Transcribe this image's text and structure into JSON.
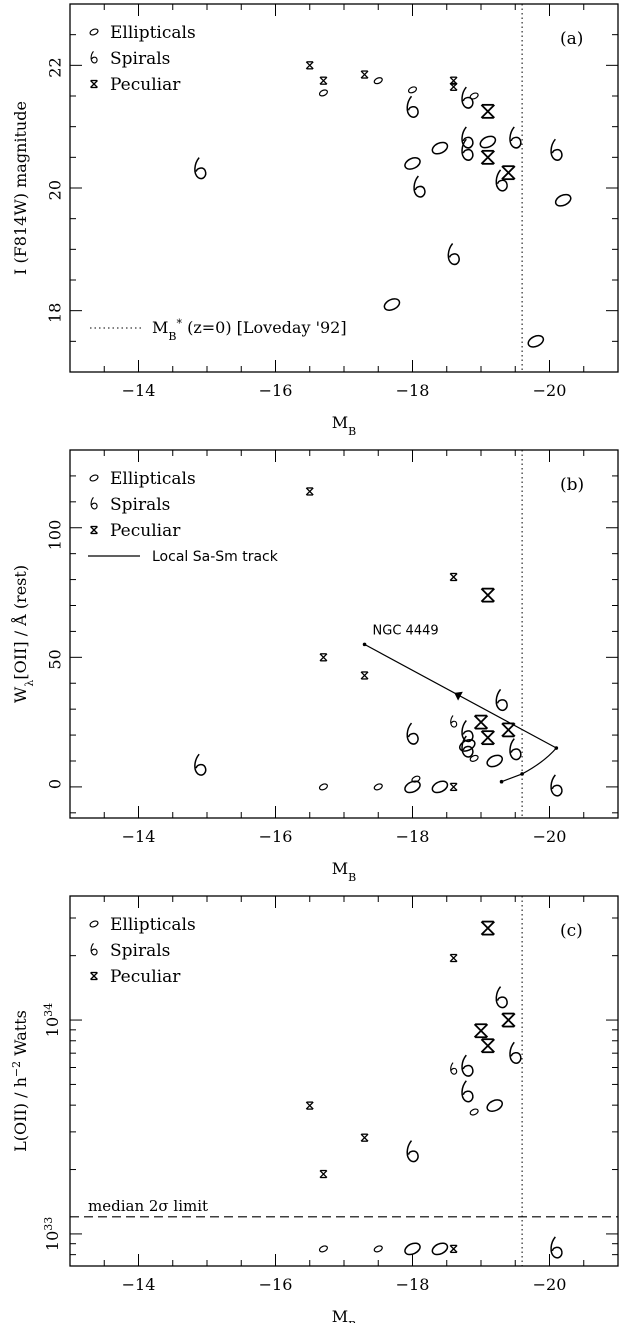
{
  "chart_data": [
    {
      "panel": "a",
      "type": "scatter",
      "panel_label": "(a)",
      "xlabel": "M",
      "xlabel_sub": "B",
      "ylabel": "I (F814W) magnitude",
      "xlim": [
        -13,
        -21
      ],
      "ylim": [
        17,
        23
      ],
      "xticks": [
        -14,
        -16,
        -18,
        -20
      ],
      "xtick_labels": [
        "−14",
        "−16",
        "−18",
        "−20"
      ],
      "yticks": [
        18,
        20,
        22
      ],
      "ytick_labels": [
        "18",
        "20",
        "22"
      ],
      "legend_position": "top-left",
      "legend": [
        {
          "key": "elliptical",
          "label": "Ellipticals"
        },
        {
          "key": "spiral",
          "label": "Spirals"
        },
        {
          "key": "peculiar",
          "label": "Peculiar"
        }
      ],
      "reference_line": {
        "orientation": "vertical",
        "x": -19.6,
        "style": "dotted",
        "label": "M",
        "label_sub": "B",
        "label_sup": "*",
        "label_rest": "(z=0) [Loveday '92]"
      },
      "series": [
        {
          "key": "elliptical",
          "points": [
            {
              "x": -16.7,
              "y": 21.55,
              "s": 1
            },
            {
              "x": -17.5,
              "y": 21.75,
              "s": 1
            },
            {
              "x": -18.0,
              "y": 21.6,
              "s": 1
            },
            {
              "x": -18.9,
              "y": 21.5,
              "s": 1
            },
            {
              "x": -18.0,
              "y": 20.4,
              "s": 2
            },
            {
              "x": -18.4,
              "y": 20.65,
              "s": 2
            },
            {
              "x": -19.1,
              "y": 20.75,
              "s": 2
            },
            {
              "x": -17.7,
              "y": 18.1,
              "s": 2
            },
            {
              "x": -19.8,
              "y": 17.5,
              "s": 2
            },
            {
              "x": -20.2,
              "y": 19.8,
              "s": 2
            }
          ]
        },
        {
          "key": "spiral",
          "points": [
            {
              "x": -14.9,
              "y": 20.3,
              "s": 2
            },
            {
              "x": -18.0,
              "y": 21.3,
              "s": 2
            },
            {
              "x": -18.8,
              "y": 21.45,
              "s": 2
            },
            {
              "x": -18.8,
              "y": 20.8,
              "s": 2
            },
            {
              "x": -18.8,
              "y": 20.6,
              "s": 2
            },
            {
              "x": -18.1,
              "y": 20.0,
              "s": 2
            },
            {
              "x": -19.3,
              "y": 20.1,
              "s": 2
            },
            {
              "x": -19.5,
              "y": 20.8,
              "s": 2
            },
            {
              "x": -18.6,
              "y": 18.9,
              "s": 2
            },
            {
              "x": -20.1,
              "y": 20.6,
              "s": 2
            }
          ]
        },
        {
          "key": "peculiar",
          "points": [
            {
              "x": -16.5,
              "y": 22.0,
              "s": 1
            },
            {
              "x": -16.7,
              "y": 21.75,
              "s": 1
            },
            {
              "x": -17.3,
              "y": 21.85,
              "s": 1
            },
            {
              "x": -18.6,
              "y": 21.75,
              "s": 1
            },
            {
              "x": -18.6,
              "y": 21.65,
              "s": 1
            },
            {
              "x": -19.1,
              "y": 21.25,
              "s": 2
            },
            {
              "x": -19.1,
              "y": 20.5,
              "s": 2
            },
            {
              "x": -19.4,
              "y": 20.25,
              "s": 2
            }
          ]
        }
      ]
    },
    {
      "panel": "b",
      "type": "scatter",
      "panel_label": "(b)",
      "xlabel": "M",
      "xlabel_sub": "B",
      "ylabel": "W",
      "ylabel_sub": "λ",
      "ylabel_rest": "[OII] / Å  (rest)",
      "xlim": [
        -13,
        -21
      ],
      "ylim": [
        -12,
        130
      ],
      "xticks": [
        -14,
        -16,
        -18,
        -20
      ],
      "xtick_labels": [
        "−14",
        "−16",
        "−18",
        "−20"
      ],
      "yticks": [
        0,
        50,
        100
      ],
      "ytick_labels": [
        "0",
        "50",
        "100"
      ],
      "legend_position": "top-left",
      "legend": [
        {
          "key": "elliptical",
          "label": "Ellipticals"
        },
        {
          "key": "spiral",
          "label": "Spirals"
        },
        {
          "key": "peculiar",
          "label": "Peculiar"
        },
        {
          "key": "track",
          "label": "Local Sa-Sm track"
        }
      ],
      "reference_line": {
        "orientation": "vertical",
        "x": -19.6,
        "style": "dotted"
      },
      "track": {
        "points": [
          [
            -17.3,
            55
          ],
          [
            -20.1,
            15
          ],
          [
            -19.6,
            5
          ],
          [
            -19.3,
            2
          ]
        ],
        "annotation": "NGC 4449",
        "arrow_at": [
          -18.7,
          35
        ]
      },
      "series": [
        {
          "key": "elliptical",
          "points": [
            {
              "x": -16.7,
              "y": 0,
              "s": 1
            },
            {
              "x": -17.5,
              "y": 0,
              "s": 1
            },
            {
              "x": -18.0,
              "y": 0,
              "s": 2
            },
            {
              "x": -18.05,
              "y": 3,
              "s": 1
            },
            {
              "x": -18.4,
              "y": 0,
              "s": 2
            },
            {
              "x": -18.9,
              "y": 11,
              "s": 1
            },
            {
              "x": -19.2,
              "y": 10,
              "s": 2
            },
            {
              "x": -18.8,
              "y": 16,
              "s": 2
            }
          ]
        },
        {
          "key": "spiral",
          "points": [
            {
              "x": -14.9,
              "y": 8,
              "s": 2
            },
            {
              "x": -18.0,
              "y": 20,
              "s": 2
            },
            {
              "x": -18.6,
              "y": 25,
              "s": 1
            },
            {
              "x": -18.8,
              "y": 21,
              "s": 2
            },
            {
              "x": -18.8,
              "y": 15,
              "s": 2
            },
            {
              "x": -19.3,
              "y": 33,
              "s": 2
            },
            {
              "x": -19.5,
              "y": 14,
              "s": 2
            },
            {
              "x": -20.1,
              "y": 0,
              "s": 2
            }
          ]
        },
        {
          "key": "peculiar",
          "points": [
            {
              "x": -16.5,
              "y": 114,
              "s": 1
            },
            {
              "x": -16.7,
              "y": 50,
              "s": 1
            },
            {
              "x": -17.3,
              "y": 43,
              "s": 1
            },
            {
              "x": -18.6,
              "y": 81,
              "s": 1
            },
            {
              "x": -18.6,
              "y": 0,
              "s": 1
            },
            {
              "x": -19.1,
              "y": 74,
              "s": 2
            },
            {
              "x": -19.0,
              "y": 25,
              "s": 2
            },
            {
              "x": -19.1,
              "y": 19,
              "s": 2
            },
            {
              "x": -19.4,
              "y": 22,
              "s": 2
            }
          ]
        }
      ]
    },
    {
      "panel": "c",
      "type": "scatter",
      "panel_label": "(c)",
      "xlabel": "M",
      "xlabel_sub": "B",
      "ylabel": "L(OII) / h",
      "ylabel_sup": "−2",
      "ylabel_rest": " Watts",
      "xlim": [
        -13,
        -21
      ],
      "ylog": true,
      "ylim_log10": [
        32.85,
        34.58
      ],
      "xticks": [
        -14,
        -16,
        -18,
        -20
      ],
      "xtick_labels": [
        "−14",
        "−16",
        "−18",
        "−20"
      ],
      "yticks_log10": [
        33,
        34
      ],
      "ytick_labels": [
        {
          "base": "10",
          "exp": "33"
        },
        {
          "base": "10",
          "exp": "34"
        }
      ],
      "legend_position": "top-left",
      "legend": [
        {
          "key": "elliptical",
          "label": "Ellipticals"
        },
        {
          "key": "spiral",
          "label": "Spirals"
        },
        {
          "key": "peculiar",
          "label": "Peculiar"
        }
      ],
      "reference_line": {
        "orientation": "vertical",
        "x": -19.6,
        "style": "dotted"
      },
      "limit_line": {
        "orientation": "horizontal",
        "y_log10": 33.08,
        "style": "dashed",
        "label": "median 2σ limit"
      },
      "series": [
        {
          "key": "elliptical",
          "points": [
            {
              "x": -16.7,
              "y_log10": 32.93,
              "s": 1
            },
            {
              "x": -17.5,
              "y_log10": 32.93,
              "s": 1
            },
            {
              "x": -18.0,
              "y_log10": 32.93,
              "s": 2
            },
            {
              "x": -18.4,
              "y_log10": 32.93,
              "s": 2
            },
            {
              "x": -18.9,
              "y_log10": 33.57,
              "s": 1
            },
            {
              "x": -19.2,
              "y_log10": 33.6,
              "s": 2
            }
          ]
        },
        {
          "key": "spiral",
          "points": [
            {
              "x": -18.0,
              "y_log10": 33.38,
              "s": 2
            },
            {
              "x": -18.6,
              "y_log10": 33.77,
              "s": 1
            },
            {
              "x": -18.8,
              "y_log10": 33.78,
              "s": 2
            },
            {
              "x": -18.8,
              "y_log10": 33.66,
              "s": 2
            },
            {
              "x": -19.3,
              "y_log10": 34.1,
              "s": 2
            },
            {
              "x": -19.5,
              "y_log10": 33.84,
              "s": 2
            },
            {
              "x": -20.1,
              "y_log10": 32.93,
              "s": 2
            }
          ]
        },
        {
          "key": "peculiar",
          "points": [
            {
              "x": -16.5,
              "y_log10": 33.6,
              "s": 1
            },
            {
              "x": -16.7,
              "y_log10": 33.28,
              "s": 1
            },
            {
              "x": -17.3,
              "y_log10": 33.45,
              "s": 1
            },
            {
              "x": -18.6,
              "y_log10": 34.29,
              "s": 1
            },
            {
              "x": -18.6,
              "y_log10": 32.93,
              "s": 1
            },
            {
              "x": -19.1,
              "y_log10": 34.43,
              "s": 2
            },
            {
              "x": -19.0,
              "y_log10": 33.95,
              "s": 2
            },
            {
              "x": -19.1,
              "y_log10": 33.88,
              "s": 2
            },
            {
              "x": -19.4,
              "y_log10": 34.0,
              "s": 2
            }
          ]
        }
      ]
    }
  ]
}
